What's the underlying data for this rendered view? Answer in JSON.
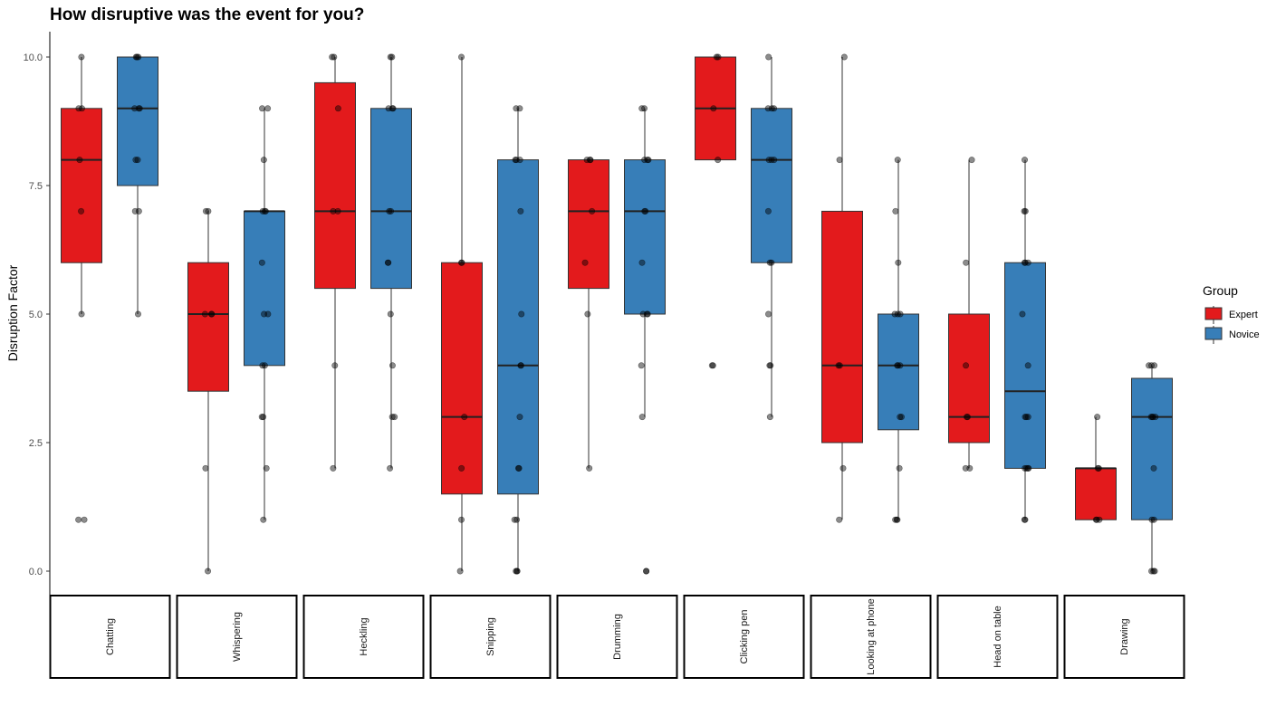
{
  "chart_data": {
    "type": "boxplot",
    "title": "How disruptive was the event for you?",
    "ylabel": "Disruption Factor",
    "xlabel": "",
    "ylim": [
      -0.5,
      10.5
    ],
    "yticks": [
      "0.0",
      "2.5",
      "5.0",
      "7.5",
      "10.0"
    ],
    "grid": false,
    "legend": {
      "title": "Group",
      "placement": "right",
      "entries": [
        "Expert",
        "Novice"
      ]
    },
    "colors": {
      "Expert": "#e31a1c",
      "Novice": "#377eb8"
    },
    "categories": [
      "Chatting",
      "Whispering",
      "Heckling",
      "Snipping",
      "Drumming",
      "Clicking pen",
      "Looking at phone",
      "Head on table",
      "Drawing"
    ],
    "series": [
      {
        "name": "Expert",
        "boxes": [
          {
            "whisker_low": 5,
            "q1": 6,
            "median": 8,
            "q3": 9,
            "whisker_high": 10
          },
          {
            "whisker_low": 0,
            "q1": 3.5,
            "median": 5,
            "q3": 6,
            "whisker_high": 7
          },
          {
            "whisker_low": 2,
            "q1": 5.5,
            "median": 7,
            "q3": 9.5,
            "whisker_high": 10
          },
          {
            "whisker_low": 0,
            "q1": 1.5,
            "median": 3,
            "q3": 6,
            "whisker_high": 10
          },
          {
            "whisker_low": 2,
            "q1": 5.5,
            "median": 7,
            "q3": 8,
            "whisker_high": 8
          },
          {
            "whisker_low": 8,
            "q1": 8,
            "median": 9,
            "q3": 10,
            "whisker_high": 10
          },
          {
            "whisker_low": 1,
            "q1": 2.5,
            "median": 4,
            "q3": 7,
            "whisker_high": 10
          },
          {
            "whisker_low": 2,
            "q1": 2.5,
            "median": 3,
            "q3": 5,
            "whisker_high": 8
          },
          {
            "whisker_low": 1,
            "q1": 1,
            "median": 2,
            "q3": 2,
            "whisker_high": 3
          }
        ],
        "points": [
          [
            10,
            9,
            9,
            8,
            7,
            5,
            1,
            1
          ],
          [
            7,
            7,
            5,
            5,
            5,
            2,
            0
          ],
          [
            10,
            10,
            9,
            7,
            7,
            4,
            2
          ],
          [
            10,
            6,
            6,
            3,
            2,
            1,
            0
          ],
          [
            8,
            8,
            8,
            7,
            6,
            5,
            2
          ],
          [
            10,
            10,
            9,
            8,
            4,
            4
          ],
          [
            10,
            8,
            4,
            4,
            2,
            1
          ],
          [
            8,
            6,
            4,
            3,
            3,
            2,
            2
          ],
          [
            3,
            2,
            2,
            1,
            1,
            1
          ]
        ]
      },
      {
        "name": "Novice",
        "boxes": [
          {
            "whisker_low": 5,
            "q1": 7.5,
            "median": 9,
            "q3": 10,
            "whisker_high": 10
          },
          {
            "whisker_low": 1,
            "q1": 4,
            "median": 7,
            "q3": 7,
            "whisker_high": 9
          },
          {
            "whisker_low": 2,
            "q1": 5.5,
            "median": 7,
            "q3": 9,
            "whisker_high": 10
          },
          {
            "whisker_low": 0,
            "q1": 1.5,
            "median": 4,
            "q3": 8,
            "whisker_high": 9
          },
          {
            "whisker_low": 3,
            "q1": 5,
            "median": 7,
            "q3": 8,
            "whisker_high": 9
          },
          {
            "whisker_low": 3,
            "q1": 6,
            "median": 8,
            "q3": 9,
            "whisker_high": 10
          },
          {
            "whisker_low": 1,
            "q1": 2.75,
            "median": 4,
            "q3": 5,
            "whisker_high": 8
          },
          {
            "whisker_low": 1,
            "q1": 2,
            "median": 3.5,
            "q3": 6,
            "whisker_high": 8
          },
          {
            "whisker_low": 0,
            "q1": 1,
            "median": 3,
            "q3": 3.75,
            "whisker_high": 4
          }
        ],
        "points": [
          [
            10,
            10,
            10,
            9,
            9,
            9,
            8,
            8,
            7,
            7,
            5
          ],
          [
            9,
            9,
            8,
            7,
            7,
            7,
            6,
            5,
            5,
            4,
            4,
            3,
            3,
            2,
            1
          ],
          [
            10,
            10,
            9,
            9,
            9,
            7,
            7,
            6,
            6,
            5,
            4,
            3,
            3,
            2
          ],
          [
            9,
            9,
            8,
            8,
            8,
            7,
            5,
            4,
            4,
            3,
            2,
            2,
            1,
            1,
            0,
            0,
            0
          ],
          [
            9,
            9,
            8,
            8,
            8,
            7,
            7,
            6,
            5,
            5,
            5,
            4,
            3,
            0,
            0
          ],
          [
            10,
            9,
            9,
            9,
            8,
            8,
            8,
            7,
            6,
            6,
            5,
            4,
            4,
            3
          ],
          [
            8,
            7,
            6,
            5,
            5,
            5,
            4,
            4,
            4,
            3,
            3,
            2,
            1,
            1,
            1
          ],
          [
            8,
            7,
            7,
            6,
            6,
            6,
            5,
            4,
            3,
            3,
            3,
            2,
            2,
            2,
            2,
            1,
            1
          ],
          [
            4,
            4,
            4,
            3,
            3,
            3,
            3,
            2,
            1,
            1,
            0,
            0,
            0
          ]
        ]
      }
    ]
  }
}
